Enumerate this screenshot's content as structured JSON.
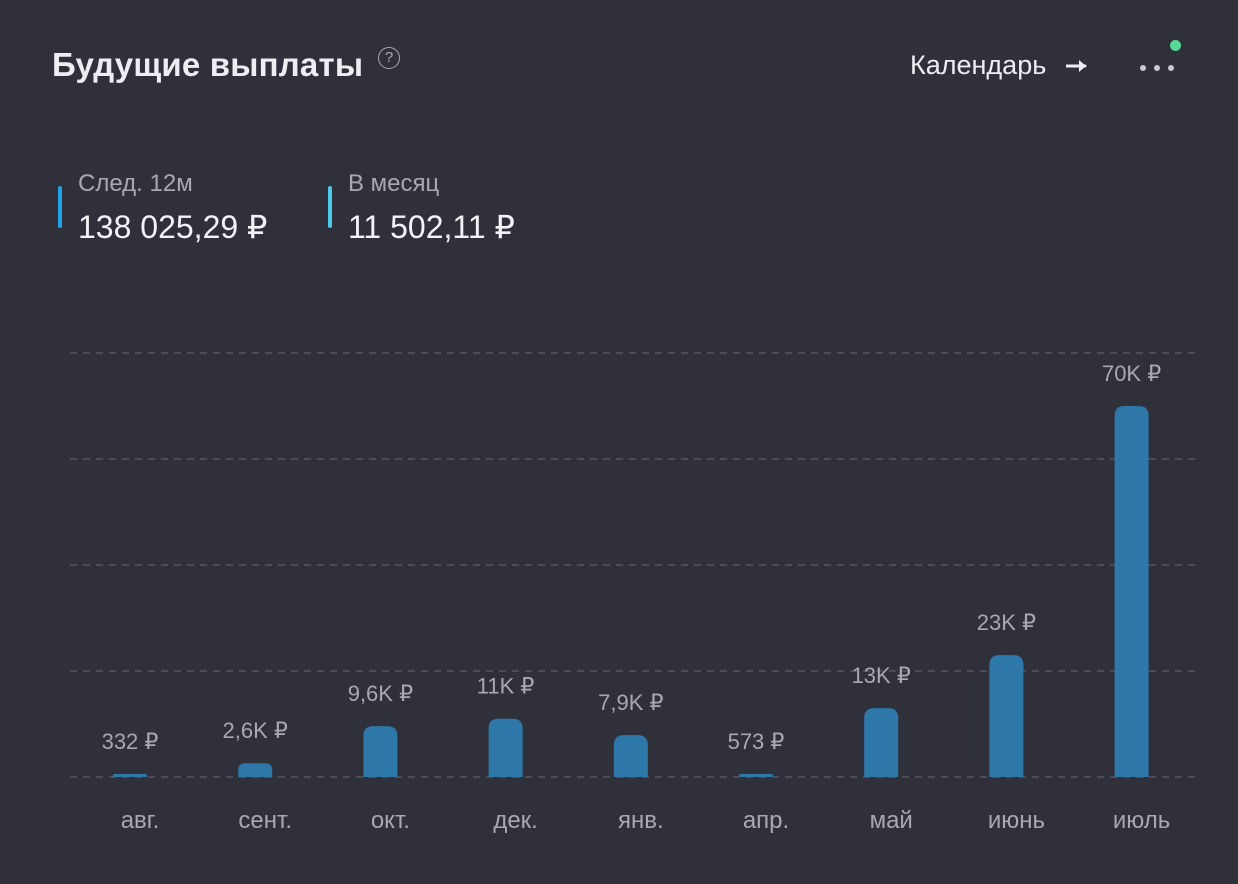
{
  "header": {
    "title": "Будущие выплаты",
    "help_icon": "?",
    "calendar_label": "Календарь",
    "arrow_icon": "arrow-right-icon",
    "more_icon": "more-horizontal-icon",
    "notification_color": "#57d996"
  },
  "stats": {
    "next12": {
      "label": "След. 12м",
      "value": "138 025,29 ₽",
      "color": "#1ea3e8"
    },
    "monthly": {
      "label": "В месяц",
      "value": "11 502,11 ₽",
      "color": "#4cc8e8"
    }
  },
  "colors": {
    "bar": "#2e77a9",
    "background": "#30303b",
    "grid": "#55565f",
    "label": "#a6a8b2"
  },
  "chart_data": {
    "type": "bar",
    "categories": [
      "авг.",
      "сент.",
      "окт.",
      "дек.",
      "янв.",
      "апр.",
      "май",
      "июнь",
      "июль"
    ],
    "values": [
      332,
      2600,
      9600,
      11000,
      7900,
      573,
      13000,
      23000,
      70000
    ],
    "value_labels": [
      "332 ₽",
      "2,6K ₽",
      "9,6K ₽",
      "11K ₽",
      "7,9K ₽",
      "573 ₽",
      "13K ₽",
      "23K ₽",
      "70K ₽"
    ],
    "ylim": [
      0,
      80000
    ],
    "grid": true
  }
}
